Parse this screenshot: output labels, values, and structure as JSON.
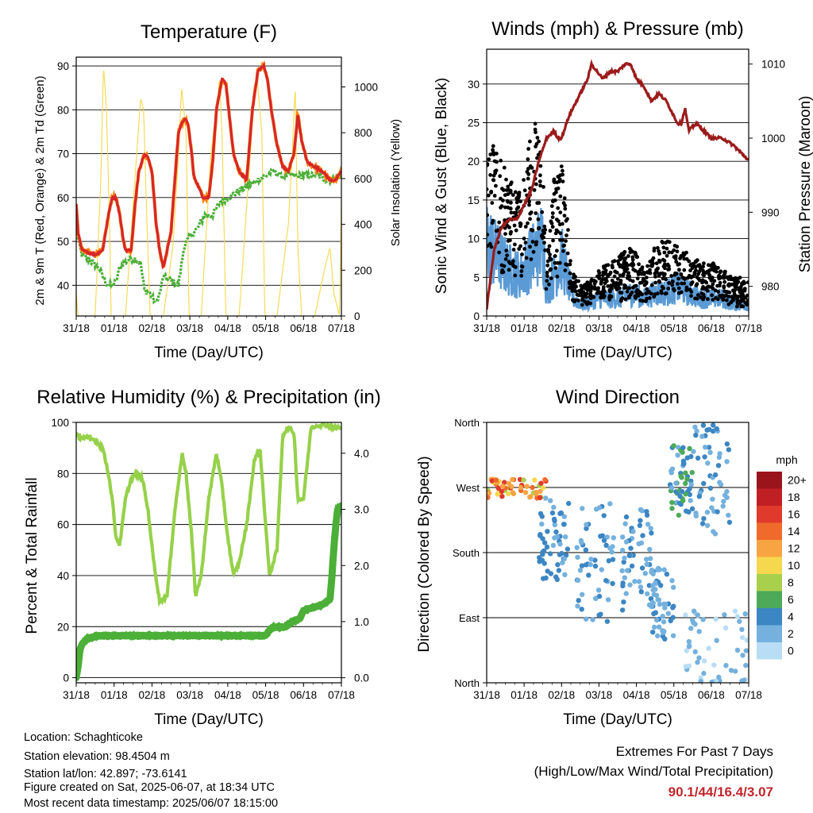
{
  "colors": {
    "temperature": "#d62728",
    "temperature_9m": "#ff7f0e",
    "dewpoint": "#4caf38",
    "solar": "#f7d84a",
    "wind": "#5b9bd5",
    "gust": "#000000",
    "pressure": "#9b1b1b",
    "rh": "#96d14a",
    "precip": "#4caf38",
    "extremes": "#c0272d"
  },
  "footer": {
    "location": "Location: Schaghticoke",
    "elevation": "Station elevation: 98.4504 m",
    "latlon": "Station lat/lon: 42.897; -73.6141",
    "created": "Figure created on Sat, 2025-06-07, at 18:34 UTC",
    "recent": "Most recent data timestamp: 2025/06/07 18:15:00",
    "extremes_title": "Extremes For Past 7 Days",
    "extremes_sub": "(High/Low/Max Wind/Total Precipitation)",
    "extremes_values": "90.1/44/16.4/3.07"
  },
  "chart_data": [
    {
      "type": "line",
      "title": "Temperature (F)",
      "xlabel": "Time (Day/UTC)",
      "ylabel": "2m & 9m T (Red, Orange) & 2m Td (Green)",
      "y2label": "Solar Insolation (Yellow)",
      "x_ticks": [
        "31/18",
        "01/18",
        "02/18",
        "03/18",
        "04/18",
        "05/18",
        "06/18",
        "07/18"
      ],
      "xlim": [
        0,
        7
      ],
      "ylim": [
        33,
        92
      ],
      "y_ticks": [
        40,
        50,
        60,
        70,
        80,
        90
      ],
      "y2lim": [
        0,
        1130
      ],
      "y2_ticks": [
        0,
        200,
        400,
        600,
        800,
        1000
      ],
      "grid": true,
      "series": [
        {
          "key": "temp",
          "x": [
            0,
            0.05,
            0.15,
            0.3,
            0.5,
            0.7,
            0.85,
            0.95,
            1.05,
            1.15,
            1.25,
            1.3,
            1.45,
            1.55,
            1.65,
            1.8,
            1.9,
            2.0,
            2.1,
            2.2,
            2.3,
            2.5,
            2.7,
            2.85,
            2.95,
            3.05,
            3.1,
            3.2,
            3.35,
            3.5,
            3.6,
            3.7,
            3.85,
            3.95,
            4.05,
            4.15,
            4.3,
            4.5,
            4.65,
            4.8,
            4.95,
            5.05,
            5.15,
            5.3,
            5.45,
            5.6,
            5.75,
            5.85,
            5.95,
            6.1,
            6.3,
            6.5,
            6.7,
            6.85,
            7.0
          ],
          "y": [
            58.5,
            52,
            48,
            47.5,
            47,
            48,
            56,
            60,
            60,
            56,
            50,
            48,
            48,
            58,
            66,
            70,
            69,
            66,
            55,
            48,
            44,
            52,
            75,
            78,
            77,
            70,
            65,
            63,
            60,
            60,
            68,
            80,
            87,
            86,
            78,
            70,
            66,
            64,
            80,
            89,
            90,
            87,
            80,
            72,
            67,
            66,
            70,
            79,
            73,
            68,
            67,
            66,
            64,
            64,
            66
          ]
        },
        {
          "key": "dew",
          "x": [
            0,
            0.05,
            0.15,
            0.3,
            0.45,
            0.6,
            0.75,
            0.85,
            0.95,
            1.05,
            1.15,
            1.25,
            1.4,
            1.55,
            1.7,
            1.8,
            1.95,
            2.1,
            2.2,
            2.3,
            2.5,
            2.7,
            2.85,
            3.0,
            3.2,
            3.4,
            3.6,
            3.8,
            4.0,
            4.2,
            4.4,
            4.6,
            4.8,
            5.0,
            5.2,
            5.4,
            5.6,
            5.8,
            6.0,
            6.2,
            6.4,
            6.6,
            6.8,
            7.0
          ],
          "y": [
            58,
            50,
            47,
            46,
            45,
            44,
            41,
            40,
            40,
            41,
            44,
            45,
            46,
            46,
            45,
            39,
            38,
            36,
            38,
            42,
            41,
            40,
            49,
            51,
            53,
            56,
            56,
            59,
            60,
            61,
            62,
            63,
            64,
            65,
            66,
            65,
            65,
            65,
            65,
            65,
            65,
            64,
            64,
            65
          ]
        },
        {
          "key": "solar",
          "x": [
            0,
            0.05,
            0.5,
            0.65,
            0.72,
            0.8,
            0.88,
            0.92,
            1.3,
            1.55,
            1.7,
            1.78,
            1.85,
            1.95,
            2.3,
            2.55,
            2.7,
            2.78,
            2.9,
            2.98,
            3.3,
            3.55,
            3.7,
            3.78,
            3.85,
            3.95,
            4.3,
            4.55,
            4.7,
            4.78,
            4.9,
            4.98,
            5.3,
            5.6,
            5.7,
            5.78,
            5.85,
            5.95,
            6.3,
            6.55,
            6.7,
            6.8,
            6.95,
            7.0
          ],
          "y": [
            100,
            0,
            0,
            600,
            1090,
            900,
            400,
            0,
            0,
            600,
            950,
            900,
            500,
            0,
            0,
            300,
            700,
            1000,
            800,
            0,
            0,
            700,
            900,
            1030,
            800,
            0,
            0,
            600,
            950,
            1030,
            800,
            0,
            0,
            400,
            700,
            1000,
            300,
            0,
            0,
            200,
            300,
            100,
            0,
            500
          ]
        }
      ]
    },
    {
      "type": "scatter",
      "title": "Winds (mph) & Pressure (mb)",
      "xlabel": "Time (Day/UTC)",
      "ylabel": "Sonic Wind & Gust (Blue, Black)",
      "y2label": "Station Pressure (Maroon)",
      "x_ticks": [
        "31/18",
        "01/18",
        "02/18",
        "03/18",
        "04/18",
        "05/18",
        "06/18",
        "07/18"
      ],
      "xlim": [
        0,
        7
      ],
      "ylim": [
        0,
        34.5
      ],
      "y_ticks": [
        0,
        5,
        10,
        15,
        20,
        25,
        30
      ],
      "y2lim": [
        976,
        1012
      ],
      "y2_ticks": [
        980,
        990,
        1000,
        1010
      ],
      "grid": true,
      "series": [
        {
          "key": "wind_env",
          "x": [
            0,
            0.3,
            0.6,
            0.9,
            1.1,
            1.3,
            1.5,
            1.6,
            1.8,
            2.0,
            2.3,
            2.6,
            3.0,
            3.3,
            3.6,
            3.9,
            4.2,
            4.5,
            4.8,
            5.1,
            5.4,
            5.7,
            6.0,
            6.3,
            6.6,
            7.0
          ],
          "y": [
            13,
            10,
            8,
            7,
            9,
            11,
            13,
            4,
            7,
            10,
            3,
            2,
            3,
            3,
            3,
            4,
            3,
            4,
            4,
            5,
            4,
            3,
            3,
            3,
            2,
            2
          ]
        },
        {
          "key": "gust_env",
          "x": [
            0,
            0.3,
            0.6,
            0.9,
            1.1,
            1.3,
            1.5,
            1.6,
            1.8,
            2.0,
            2.3,
            2.6,
            3.0,
            3.3,
            3.6,
            3.9,
            4.2,
            4.5,
            4.8,
            5.1,
            5.4,
            5.7,
            6.0,
            6.3,
            6.6,
            7.0
          ],
          "y": [
            25,
            22,
            18,
            16,
            22,
            25,
            20,
            6,
            18,
            20,
            6,
            4,
            6,
            7,
            8,
            9,
            6,
            9,
            10,
            9,
            8,
            7,
            7,
            6,
            5,
            5
          ]
        },
        {
          "key": "pressure",
          "x": [
            0,
            0.2,
            0.4,
            0.6,
            0.8,
            1.0,
            1.2,
            1.4,
            1.6,
            1.8,
            1.9,
            2.0,
            2.2,
            2.5,
            2.7,
            2.8,
            2.95,
            3.1,
            3.3,
            3.5,
            3.7,
            3.85,
            4.0,
            4.2,
            4.4,
            4.6,
            4.8,
            5.0,
            5.1,
            5.2,
            5.3,
            5.4,
            5.6,
            5.8,
            6.0,
            6.3,
            6.6,
            6.8,
            7.0
          ],
          "y": [
            977,
            985,
            988,
            989,
            989,
            991,
            993,
            997,
            1000,
            1001,
            1000,
            1000,
            1003,
            1006,
            1008,
            1010,
            1009,
            1008,
            1009,
            1009,
            1010,
            1010,
            1008,
            1007,
            1005,
            1006,
            1005,
            1003,
            1002,
            1002,
            1004,
            1001,
            1002,
            1001,
            1000,
            1000,
            999,
            998,
            997
          ]
        }
      ]
    },
    {
      "type": "line",
      "title": "Relative Humidity (%) & Precipitation (in)",
      "xlabel": "Time (Day/UTC)",
      "ylabel": "Percent & Total Rainfall",
      "x_ticks": [
        "31/18",
        "01/18",
        "02/18",
        "03/18",
        "04/18",
        "05/18",
        "06/18",
        "07/18"
      ],
      "xlim": [
        0,
        7
      ],
      "ylim": [
        -2,
        100
      ],
      "y_ticks": [
        0,
        20,
        40,
        60,
        80,
        100
      ],
      "y2lim": [
        -0.09,
        4.55
      ],
      "y2_ticks": [
        0.0,
        1.0,
        2.0,
        3.0,
        4.0
      ],
      "grid": true,
      "series": [
        {
          "key": "rh",
          "x": [
            0,
            0.1,
            0.3,
            0.5,
            0.7,
            0.85,
            0.95,
            1.05,
            1.15,
            1.3,
            1.45,
            1.6,
            1.75,
            1.9,
            2.05,
            2.2,
            2.4,
            2.6,
            2.8,
            2.9,
            3.05,
            3.15,
            3.3,
            3.5,
            3.7,
            3.85,
            4.0,
            4.15,
            4.3,
            4.5,
            4.7,
            4.85,
            5.0,
            5.1,
            5.3,
            5.45,
            5.6,
            5.75,
            5.85,
            6.0,
            6.2,
            6.4,
            6.6,
            6.8,
            7.0
          ],
          "y": [
            95,
            94,
            94,
            93,
            90,
            80,
            70,
            55,
            52,
            70,
            78,
            80,
            78,
            65,
            45,
            30,
            32,
            65,
            88,
            80,
            55,
            32,
            40,
            70,
            88,
            75,
            55,
            40,
            45,
            60,
            85,
            90,
            60,
            40,
            50,
            95,
            98,
            96,
            70,
            70,
            98,
            99,
            99,
            98,
            98
          ]
        },
        {
          "key": "precip",
          "x": [
            0,
            0.05,
            0.1,
            0.15,
            0.3,
            0.6,
            1.0,
            2.0,
            3.0,
            4.0,
            4.5,
            5.0,
            5.1,
            5.2,
            5.5,
            5.7,
            5.9,
            6.0,
            6.5,
            6.7,
            6.75,
            6.8,
            6.85,
            6.9,
            7.0
          ],
          "y": [
            0,
            0.2,
            0.5,
            0.6,
            0.7,
            0.75,
            0.75,
            0.75,
            0.75,
            0.75,
            0.75,
            0.75,
            0.85,
            0.9,
            0.9,
            1.0,
            1.05,
            1.2,
            1.3,
            1.4,
            1.8,
            2.3,
            2.7,
            3.0,
            3.07
          ]
        }
      ]
    },
    {
      "type": "scatter",
      "title": "Wind Direction",
      "xlabel": "Time (Day/UTC)",
      "ylabel": "Direction (Colored By Speed)",
      "x_ticks": [
        "31/18",
        "01/18",
        "02/18",
        "03/18",
        "04/18",
        "05/18",
        "06/18",
        "07/18"
      ],
      "xlim": [
        0,
        7
      ],
      "ylim": [
        0,
        360
      ],
      "y_ticks": [
        "North",
        "East",
        "South",
        "West",
        "North"
      ],
      "grid": true,
      "colorbar": {
        "title": "mph",
        "labels": [
          "20+",
          "18",
          "16",
          "14",
          "12",
          "10",
          "8",
          "6",
          "4",
          "2",
          "0"
        ],
        "colors": [
          "#99141b",
          "#c01f24",
          "#e03a2c",
          "#f06a2b",
          "#f9a443",
          "#f6d84f",
          "#a9d04c",
          "#4caa58",
          "#3c86c3",
          "#74b1de",
          "#b8ddf4"
        ]
      },
      "clusters": [
        {
          "x": [
            0,
            1.6
          ],
          "y": [
            255,
            282
          ],
          "speed": [
            8,
            16
          ]
        },
        {
          "x": [
            1.4,
            2.2
          ],
          "y": [
            140,
            260
          ],
          "speed": [
            2,
            5
          ]
        },
        {
          "x": [
            2.4,
            3.4
          ],
          "y": [
            80,
            260
          ],
          "speed": [
            1,
            5
          ]
        },
        {
          "x": [
            3.6,
            4.4
          ],
          "y": [
            100,
            240
          ],
          "speed": [
            1,
            5
          ]
        },
        {
          "x": [
            4.4,
            5.0
          ],
          "y": [
            60,
            160
          ],
          "speed": [
            1,
            4
          ]
        },
        {
          "x": [
            4.9,
            5.5
          ],
          "y": [
            230,
            330
          ],
          "speed": [
            2,
            7
          ]
        },
        {
          "x": [
            5.5,
            6.5
          ],
          "y": [
            200,
            360
          ],
          "speed": [
            1,
            4
          ]
        },
        {
          "x": [
            5.3,
            7.0
          ],
          "y": [
            0,
            100
          ],
          "speed": [
            0,
            3
          ]
        }
      ]
    }
  ]
}
